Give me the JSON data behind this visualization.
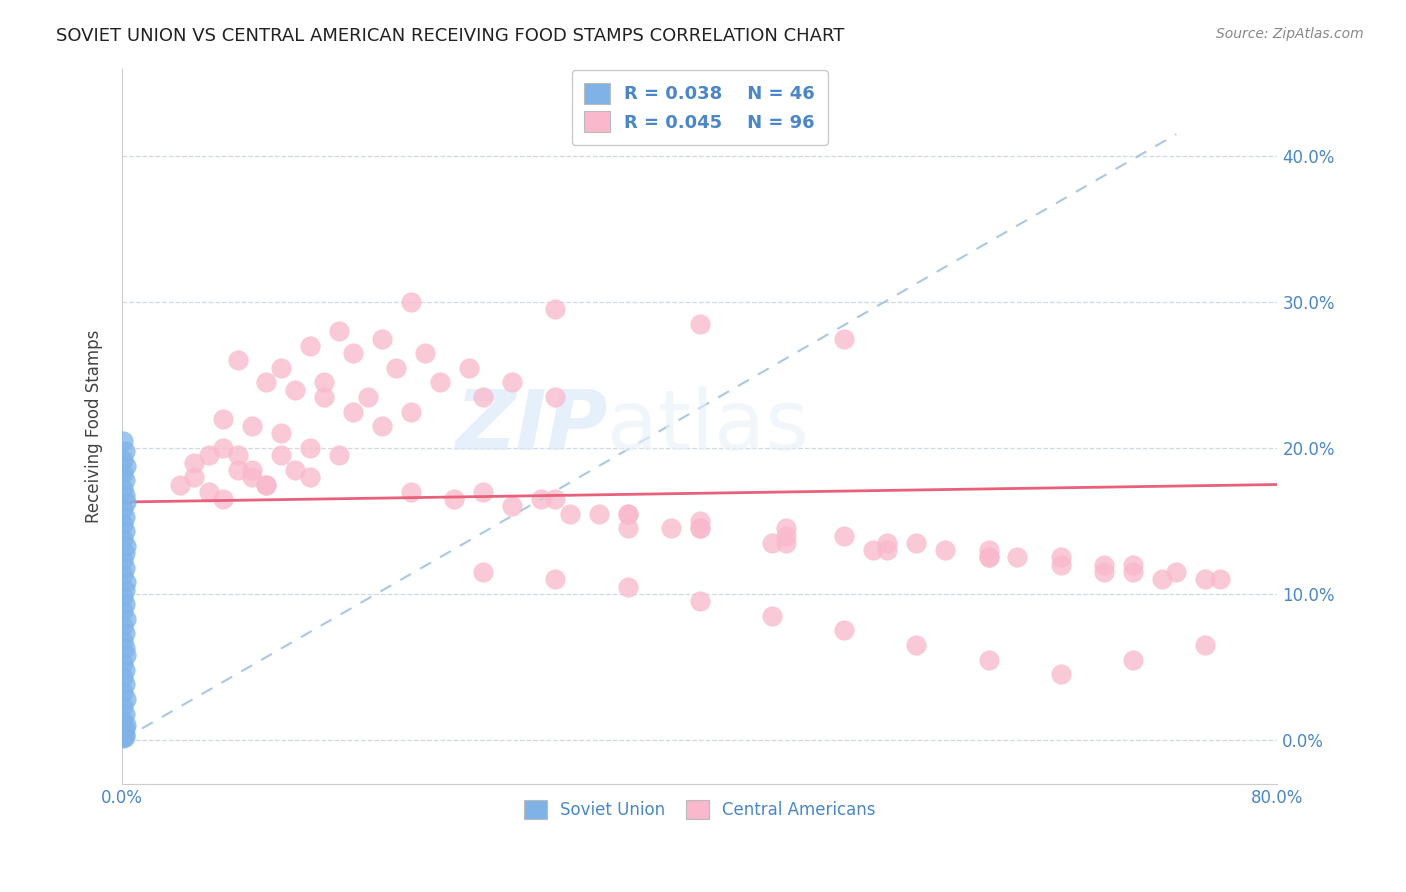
{
  "title": "SOVIET UNION VS CENTRAL AMERICAN RECEIVING FOOD STAMPS CORRELATION CHART",
  "source": "Source: ZipAtlas.com",
  "ylabel": "Receiving Food Stamps",
  "xlim": [
    0.0,
    0.8
  ],
  "ylim": [
    -0.03,
    0.46
  ],
  "blue_color": "#7fb3e8",
  "blue_edge_color": "#5a9ad4",
  "pink_color": "#f9b8cc",
  "pink_edge_color": "#f090b0",
  "blue_line_color": "#9bbfe0",
  "pink_line_color": "#e8607a",
  "text_color": "#4a86c8",
  "grid_color": "#d0d8e8",
  "watermark_color": "#dceaf8",
  "soviet_union_x": [
    0.001,
    0.002,
    0.001,
    0.003,
    0.001,
    0.002,
    0.001,
    0.002,
    0.003,
    0.001,
    0.002,
    0.001,
    0.002,
    0.001,
    0.003,
    0.002,
    0.001,
    0.002,
    0.001,
    0.003,
    0.002,
    0.001,
    0.002,
    0.001,
    0.003,
    0.001,
    0.002,
    0.001,
    0.002,
    0.003,
    0.001,
    0.002,
    0.001,
    0.002,
    0.001,
    0.003,
    0.001,
    0.002,
    0.001,
    0.003,
    0.002,
    0.001,
    0.002,
    0.001,
    0.002,
    0.001
  ],
  "soviet_union_y": [
    0.205,
    0.198,
    0.192,
    0.188,
    0.183,
    0.178,
    0.172,
    0.168,
    0.163,
    0.158,
    0.153,
    0.148,
    0.143,
    0.138,
    0.133,
    0.128,
    0.123,
    0.118,
    0.113,
    0.108,
    0.103,
    0.098,
    0.093,
    0.088,
    0.083,
    0.078,
    0.073,
    0.068,
    0.063,
    0.058,
    0.053,
    0.048,
    0.043,
    0.038,
    0.033,
    0.028,
    0.023,
    0.018,
    0.013,
    0.01,
    0.008,
    0.006,
    0.004,
    0.003,
    0.002,
    0.001
  ],
  "central_american_x": [
    0.04,
    0.05,
    0.06,
    0.07,
    0.05,
    0.08,
    0.09,
    0.1,
    0.06,
    0.07,
    0.08,
    0.09,
    0.1,
    0.11,
    0.12,
    0.13,
    0.07,
    0.09,
    0.11,
    0.13,
    0.15,
    0.1,
    0.12,
    0.14,
    0.16,
    0.18,
    0.08,
    0.11,
    0.14,
    0.17,
    0.2,
    0.13,
    0.16,
    0.19,
    0.22,
    0.25,
    0.15,
    0.18,
    0.21,
    0.24,
    0.27,
    0.3,
    0.2,
    0.23,
    0.27,
    0.31,
    0.35,
    0.25,
    0.29,
    0.33,
    0.38,
    0.3,
    0.35,
    0.4,
    0.45,
    0.35,
    0.4,
    0.46,
    0.52,
    0.4,
    0.46,
    0.53,
    0.6,
    0.46,
    0.53,
    0.6,
    0.68,
    0.5,
    0.57,
    0.65,
    0.72,
    0.55,
    0.62,
    0.7,
    0.6,
    0.68,
    0.75,
    0.65,
    0.73,
    0.7,
    0.76,
    0.25,
    0.3,
    0.35,
    0.4,
    0.45,
    0.5,
    0.55,
    0.6,
    0.65,
    0.7,
    0.75,
    0.2,
    0.3,
    0.4,
    0.5
  ],
  "central_american_y": [
    0.175,
    0.18,
    0.17,
    0.165,
    0.19,
    0.185,
    0.18,
    0.175,
    0.195,
    0.2,
    0.195,
    0.185,
    0.175,
    0.195,
    0.185,
    0.18,
    0.22,
    0.215,
    0.21,
    0.2,
    0.195,
    0.245,
    0.24,
    0.235,
    0.225,
    0.215,
    0.26,
    0.255,
    0.245,
    0.235,
    0.225,
    0.27,
    0.265,
    0.255,
    0.245,
    0.235,
    0.28,
    0.275,
    0.265,
    0.255,
    0.245,
    0.235,
    0.17,
    0.165,
    0.16,
    0.155,
    0.145,
    0.17,
    0.165,
    0.155,
    0.145,
    0.165,
    0.155,
    0.145,
    0.135,
    0.155,
    0.145,
    0.135,
    0.13,
    0.15,
    0.14,
    0.13,
    0.125,
    0.145,
    0.135,
    0.125,
    0.115,
    0.14,
    0.13,
    0.12,
    0.11,
    0.135,
    0.125,
    0.115,
    0.13,
    0.12,
    0.11,
    0.125,
    0.115,
    0.12,
    0.11,
    0.115,
    0.11,
    0.105,
    0.095,
    0.085,
    0.075,
    0.065,
    0.055,
    0.045,
    0.055,
    0.065,
    0.3,
    0.295,
    0.285,
    0.275
  ],
  "blue_trend_x": [
    0.0,
    0.73
  ],
  "blue_trend_y": [
    0.0,
    0.415
  ],
  "pink_trend_x": [
    0.0,
    0.8
  ],
  "pink_trend_y": [
    0.163,
    0.175
  ],
  "ytick_positions": [
    0.0,
    0.1,
    0.2,
    0.3,
    0.4
  ],
  "ytick_labels": [
    "0.0%",
    "10.0%",
    "20.0%",
    "30.0%",
    "40.0%"
  ]
}
